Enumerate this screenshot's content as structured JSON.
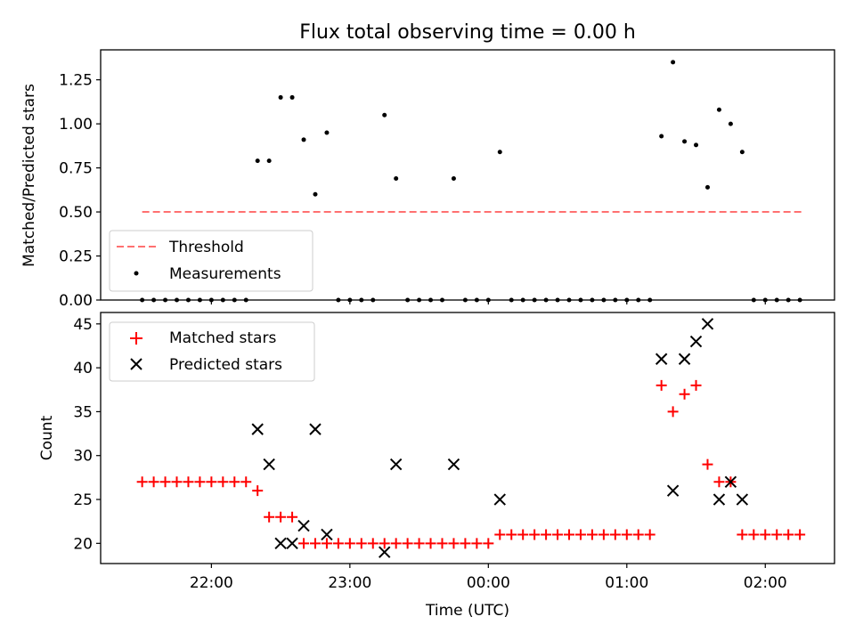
{
  "chart_data": [
    {
      "type": "scatter",
      "title": "Flux total observing time = 0.00 h",
      "xlabel": "",
      "ylabel": "Matched/Predicted stars",
      "ylim": [
        0,
        1.42
      ],
      "yticks": [
        0,
        0.25,
        0.5,
        0.75,
        1.0,
        1.25
      ],
      "ytick_labels": [
        "0.00",
        "0.25",
        "0.50",
        "0.75",
        "1.00",
        "1.25"
      ],
      "xlim": [
        "21:12",
        "02:30"
      ],
      "xticks": [
        "22:00",
        "23:00",
        "00:00",
        "01:00",
        "02:00"
      ],
      "grid": false,
      "legend_position": "lower-left",
      "threshold": {
        "name": "Threshold",
        "value": 0.5,
        "x_start": "21:30",
        "x_end": "02:17",
        "color": "#ff7070"
      },
      "measurements": {
        "name": "Measurements",
        "color": "#000000",
        "x": [
          "21:30",
          "21:35",
          "21:40",
          "21:45",
          "21:50",
          "21:55",
          "22:00",
          "22:05",
          "22:10",
          "22:15",
          "22:20",
          "22:25",
          "22:30",
          "22:35",
          "22:40",
          "22:45",
          "22:50",
          "22:55",
          "23:00",
          "23:05",
          "23:10",
          "23:15",
          "23:20",
          "23:25",
          "23:30",
          "23:35",
          "23:40",
          "23:45",
          "23:50",
          "23:55",
          "00:00",
          "00:05",
          "00:10",
          "00:15",
          "00:20",
          "00:25",
          "00:30",
          "00:35",
          "00:40",
          "00:45",
          "00:50",
          "00:55",
          "01:00",
          "01:05",
          "01:10",
          "01:15",
          "01:20",
          "01:25",
          "01:30",
          "01:35",
          "01:40",
          "01:45",
          "01:50",
          "01:55",
          "02:00",
          "02:05",
          "02:10",
          "02:15"
        ],
        "y": [
          0,
          0,
          0,
          0,
          0,
          0,
          0,
          0,
          0,
          0,
          0.79,
          0.79,
          1.15,
          1.15,
          0.91,
          0.6,
          0.95,
          0,
          0,
          0,
          0,
          1.05,
          0.69,
          0,
          0,
          0,
          0,
          0.69,
          0,
          0,
          0,
          0.84,
          0,
          0,
          0,
          0,
          0,
          0,
          0,
          0,
          0,
          0,
          0,
          0,
          0,
          0.93,
          1.35,
          0.9,
          0.88,
          0.64,
          1.08,
          1.0,
          0.84,
          0,
          0,
          0,
          0,
          0
        ]
      }
    },
    {
      "type": "scatter",
      "title": "",
      "xlabel": "Time (UTC)",
      "ylabel": "Count",
      "ylim": [
        17.7,
        46.3
      ],
      "yticks": [
        20,
        25,
        30,
        35,
        40,
        45
      ],
      "xlim": [
        "21:12",
        "02:30"
      ],
      "xticks": [
        "22:00",
        "23:00",
        "00:00",
        "01:00",
        "02:00"
      ],
      "grid": false,
      "legend_position": "upper-left",
      "series": [
        {
          "name": "Matched stars",
          "marker": "plus",
          "color": "#ff0000",
          "x": [
            "21:30",
            "21:35",
            "21:40",
            "21:45",
            "21:50",
            "21:55",
            "22:00",
            "22:05",
            "22:10",
            "22:15",
            "22:20",
            "22:25",
            "22:30",
            "22:35",
            "22:40",
            "22:45",
            "22:50",
            "22:55",
            "23:00",
            "23:05",
            "23:10",
            "23:15",
            "23:20",
            "23:25",
            "23:30",
            "23:35",
            "23:40",
            "23:45",
            "23:50",
            "23:55",
            "00:00",
            "00:05",
            "00:10",
            "00:15",
            "00:20",
            "00:25",
            "00:30",
            "00:35",
            "00:40",
            "00:45",
            "00:50",
            "00:55",
            "01:00",
            "01:05",
            "01:10",
            "01:15",
            "01:20",
            "01:25",
            "01:30",
            "01:35",
            "01:40",
            "01:45",
            "01:50",
            "01:55",
            "02:00",
            "02:05",
            "02:10",
            "02:15"
          ],
          "y": [
            27,
            27,
            27,
            27,
            27,
            27,
            27,
            27,
            27,
            27,
            26,
            23,
            23,
            23,
            20,
            20,
            20,
            20,
            20,
            20,
            20,
            20,
            20,
            20,
            20,
            20,
            20,
            20,
            20,
            20,
            20,
            21,
            21,
            21,
            21,
            21,
            21,
            21,
            21,
            21,
            21,
            21,
            21,
            21,
            21,
            38,
            35,
            37,
            38,
            29,
            27,
            27,
            21,
            21,
            21,
            21,
            21,
            21
          ]
        },
        {
          "name": "Predicted stars",
          "marker": "x",
          "color": "#000000",
          "x": [
            "22:20",
            "22:25",
            "22:30",
            "22:35",
            "22:40",
            "22:45",
            "22:50",
            "23:15",
            "23:20",
            "23:45",
            "00:05",
            "01:15",
            "01:20",
            "01:25",
            "01:30",
            "01:35",
            "01:40",
            "01:45",
            "01:50"
          ],
          "y": [
            33,
            29,
            20,
            20,
            22,
            33,
            21,
            19,
            29,
            29,
            25,
            41,
            26,
            41,
            43,
            45,
            25,
            27,
            25
          ]
        }
      ]
    }
  ]
}
